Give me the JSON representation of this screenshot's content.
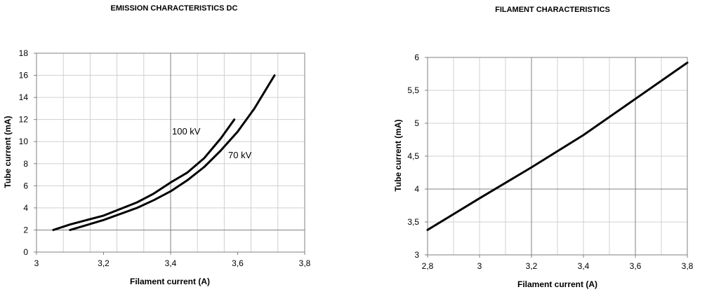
{
  "chart_data": [
    {
      "type": "line",
      "title": "EMISSION CHARACTERISTICS DC",
      "xlabel": "Filament current (A)",
      "ylabel": "Tube current (mA)",
      "xlim": [
        3,
        3.8
      ],
      "ylim": [
        0,
        18
      ],
      "x_ticks": [
        "3",
        "3,2",
        "3,4",
        "3,6",
        "3,8"
      ],
      "y_ticks": [
        "0",
        "2",
        "4",
        "6",
        "8",
        "10",
        "12",
        "14",
        "16",
        "18"
      ],
      "grid": true,
      "series": [
        {
          "name": "100 kV",
          "x": [
            3.05,
            3.1,
            3.2,
            3.3,
            3.35,
            3.4,
            3.45,
            3.5,
            3.55,
            3.59
          ],
          "y": [
            2.0,
            2.5,
            3.3,
            4.5,
            5.3,
            6.3,
            7.2,
            8.5,
            10.3,
            12.0
          ]
        },
        {
          "name": "70 kV",
          "x": [
            3.1,
            3.2,
            3.3,
            3.35,
            3.4,
            3.45,
            3.5,
            3.55,
            3.6,
            3.65,
            3.71
          ],
          "y": [
            2.0,
            2.9,
            4.0,
            4.7,
            5.5,
            6.5,
            7.7,
            9.2,
            10.9,
            13.0,
            16.0
          ]
        }
      ],
      "annotations": [
        "100 kV",
        "70 kV"
      ]
    },
    {
      "type": "line",
      "title": "FILAMENT CHARACTERISTICS",
      "xlabel": "Filament current (A)",
      "ylabel": "Tube current (mA)",
      "xlim": [
        2.8,
        3.8
      ],
      "ylim": [
        3,
        6
      ],
      "x_ticks": [
        "2,8",
        "3",
        "3,2",
        "3,4",
        "3,6",
        "3,8"
      ],
      "y_ticks": [
        "3",
        "3,5",
        "4",
        "4,5",
        "5",
        "5,5",
        "6"
      ],
      "grid": true,
      "series": [
        {
          "x": [
            2.8,
            3.0,
            3.2,
            3.4,
            3.6,
            3.8
          ],
          "y": [
            3.38,
            3.86,
            4.33,
            4.82,
            5.37,
            5.92
          ]
        }
      ]
    }
  ]
}
